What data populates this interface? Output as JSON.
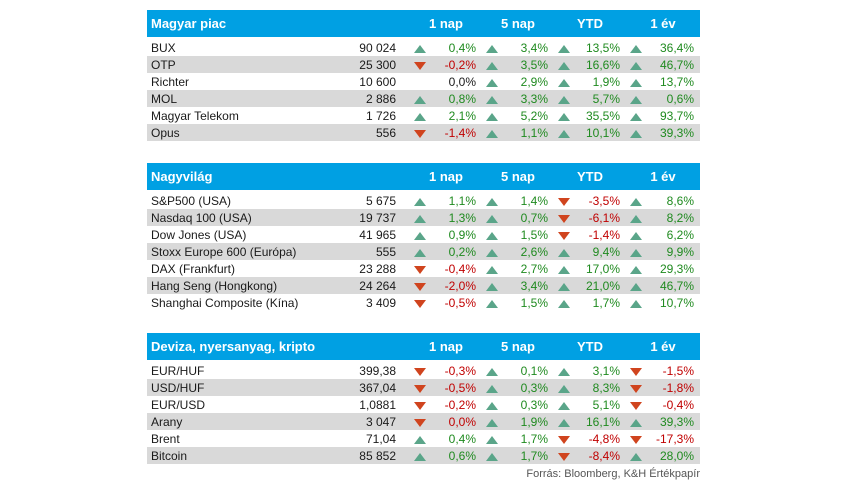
{
  "sections": [
    {
      "title": "Magyar piac",
      "columns": [
        "1 nap",
        "5 nap",
        "YTD",
        "1 év"
      ],
      "rows": [
        {
          "name": "BUX",
          "price": "90 024",
          "changes": [
            {
              "v": "0,4%",
              "d": "up"
            },
            {
              "v": "3,4%",
              "d": "up"
            },
            {
              "v": "13,5%",
              "d": "up"
            },
            {
              "v": "36,4%",
              "d": "up"
            }
          ]
        },
        {
          "name": "OTP",
          "price": "25 300",
          "changes": [
            {
              "v": "-0,2%",
              "d": "down"
            },
            {
              "v": "3,5%",
              "d": "up"
            },
            {
              "v": "16,6%",
              "d": "up"
            },
            {
              "v": "46,7%",
              "d": "up"
            }
          ]
        },
        {
          "name": "Richter",
          "price": "10 600",
          "changes": [
            {
              "v": "0,0%",
              "d": "flat"
            },
            {
              "v": "2,9%",
              "d": "up"
            },
            {
              "v": "1,9%",
              "d": "up"
            },
            {
              "v": "13,7%",
              "d": "up"
            }
          ]
        },
        {
          "name": "MOL",
          "price": "2 886",
          "changes": [
            {
              "v": "0,8%",
              "d": "up"
            },
            {
              "v": "3,3%",
              "d": "up"
            },
            {
              "v": "5,7%",
              "d": "up"
            },
            {
              "v": "0,6%",
              "d": "up"
            }
          ]
        },
        {
          "name": "Magyar Telekom",
          "price": "1 726",
          "changes": [
            {
              "v": "2,1%",
              "d": "up"
            },
            {
              "v": "5,2%",
              "d": "up"
            },
            {
              "v": "35,5%",
              "d": "up"
            },
            {
              "v": "93,7%",
              "d": "up"
            }
          ]
        },
        {
          "name": "Opus",
          "price": "556",
          "changes": [
            {
              "v": "-1,4%",
              "d": "down"
            },
            {
              "v": "1,1%",
              "d": "up"
            },
            {
              "v": "10,1%",
              "d": "up"
            },
            {
              "v": "39,3%",
              "d": "up"
            }
          ]
        }
      ]
    },
    {
      "title": "Nagyvilág",
      "columns": [
        "1 nap",
        "5 nap",
        "YTD",
        "1 év"
      ],
      "rows": [
        {
          "name": "S&P500 (USA)",
          "price": "5 675",
          "changes": [
            {
              "v": "1,1%",
              "d": "up"
            },
            {
              "v": "1,4%",
              "d": "up"
            },
            {
              "v": "-3,5%",
              "d": "down"
            },
            {
              "v": "8,6%",
              "d": "up"
            }
          ]
        },
        {
          "name": "Nasdaq 100 (USA)",
          "price": "19 737",
          "changes": [
            {
              "v": "1,3%",
              "d": "up"
            },
            {
              "v": "0,7%",
              "d": "up"
            },
            {
              "v": "-6,1%",
              "d": "down"
            },
            {
              "v": "8,2%",
              "d": "up"
            }
          ]
        },
        {
          "name": "Dow Jones (USA)",
          "price": "41 965",
          "changes": [
            {
              "v": "0,9%",
              "d": "up"
            },
            {
              "v": "1,5%",
              "d": "up"
            },
            {
              "v": "-1,4%",
              "d": "down"
            },
            {
              "v": "6,2%",
              "d": "up"
            }
          ]
        },
        {
          "name": "Stoxx Europe 600 (Európa)",
          "price": "555",
          "changes": [
            {
              "v": "0,2%",
              "d": "up"
            },
            {
              "v": "2,6%",
              "d": "up"
            },
            {
              "v": "9,4%",
              "d": "up"
            },
            {
              "v": "9,9%",
              "d": "up"
            }
          ]
        },
        {
          "name": "DAX (Frankfurt)",
          "price": "23 288",
          "changes": [
            {
              "v": "-0,4%",
              "d": "down"
            },
            {
              "v": "2,7%",
              "d": "up"
            },
            {
              "v": "17,0%",
              "d": "up"
            },
            {
              "v": "29,3%",
              "d": "up"
            }
          ]
        },
        {
          "name": "Hang Seng (Hongkong)",
          "price": "24 264",
          "changes": [
            {
              "v": "-2,0%",
              "d": "down"
            },
            {
              "v": "3,4%",
              "d": "up"
            },
            {
              "v": "21,0%",
              "d": "up"
            },
            {
              "v": "46,7%",
              "d": "up"
            }
          ]
        },
        {
          "name": "Shanghai Composite (Kína)",
          "price": "3 409",
          "changes": [
            {
              "v": "-0,5%",
              "d": "down"
            },
            {
              "v": "1,5%",
              "d": "up"
            },
            {
              "v": "1,7%",
              "d": "up"
            },
            {
              "v": "10,7%",
              "d": "up"
            }
          ]
        }
      ]
    },
    {
      "title": "Deviza, nyersanyag, kripto",
      "columns": [
        "1 nap",
        "5 nap",
        "YTD",
        "1 év"
      ],
      "rows": [
        {
          "name": "EUR/HUF",
          "price": "399,38",
          "changes": [
            {
              "v": "-0,3%",
              "d": "down"
            },
            {
              "v": "0,1%",
              "d": "up"
            },
            {
              "v": "3,1%",
              "d": "up"
            },
            {
              "v": "-1,5%",
              "d": "down"
            }
          ]
        },
        {
          "name": "USD/HUF",
          "price": "367,04",
          "changes": [
            {
              "v": "-0,5%",
              "d": "down"
            },
            {
              "v": "0,3%",
              "d": "up"
            },
            {
              "v": "8,3%",
              "d": "up"
            },
            {
              "v": "-1,8%",
              "d": "down"
            }
          ]
        },
        {
          "name": "EUR/USD",
          "price": "1,0881",
          "changes": [
            {
              "v": "-0,2%",
              "d": "down"
            },
            {
              "v": "0,3%",
              "d": "up"
            },
            {
              "v": "5,1%",
              "d": "up"
            },
            {
              "v": "-0,4%",
              "d": "down"
            }
          ]
        },
        {
          "name": "Arany",
          "price": "3 047",
          "changes": [
            {
              "v": "0,0%",
              "d": "down"
            },
            {
              "v": "1,9%",
              "d": "up"
            },
            {
              "v": "16,1%",
              "d": "up"
            },
            {
              "v": "39,3%",
              "d": "up"
            }
          ]
        },
        {
          "name": "Brent",
          "price": "71,04",
          "changes": [
            {
              "v": "0,4%",
              "d": "up"
            },
            {
              "v": "1,7%",
              "d": "up"
            },
            {
              "v": "-4,8%",
              "d": "down"
            },
            {
              "v": "-17,3%",
              "d": "down"
            }
          ]
        },
        {
          "name": "Bitcoin",
          "price": "85 852",
          "changes": [
            {
              "v": "0,6%",
              "d": "up"
            },
            {
              "v": "1,7%",
              "d": "up"
            },
            {
              "v": "-8,4%",
              "d": "down"
            },
            {
              "v": "28,0%",
              "d": "up"
            }
          ]
        }
      ]
    }
  ],
  "source": "Forrás: Bloomberg, K&H Értékpapír",
  "colors": {
    "header_bg": "#00a0e3",
    "up": "#5aa589",
    "down": "#d0441e",
    "row_alt": "#d9d9d9"
  }
}
